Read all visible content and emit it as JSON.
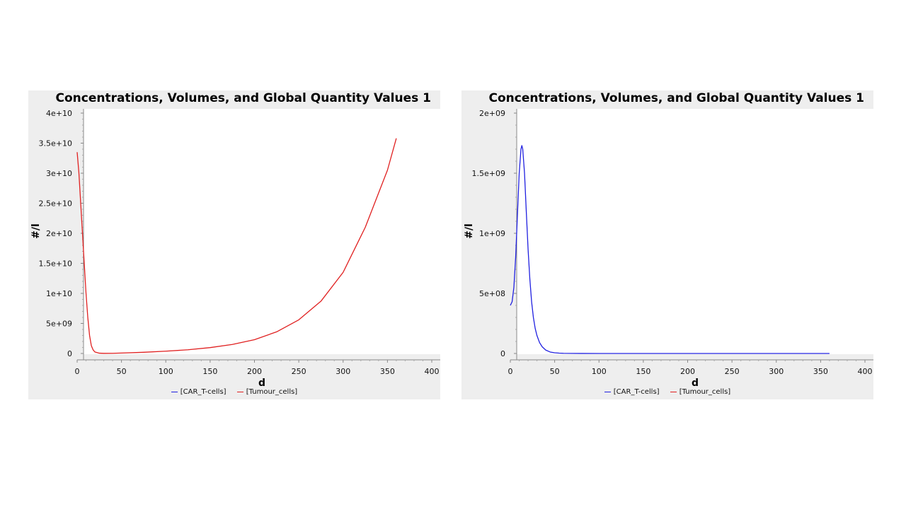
{
  "chart_data": [
    {
      "type": "line",
      "title": "Concentrations, Volumes, and Global Quantity Values 1",
      "xlabel": "d",
      "ylabel": "#/l",
      "xlim": [
        0,
        400
      ],
      "ylim": [
        0,
        40000000000
      ],
      "x_ticks": [
        "0",
        "50",
        "100",
        "150",
        "200",
        "250",
        "300",
        "350",
        "400"
      ],
      "y_ticks": [
        "0",
        "5e+09",
        "1e+10",
        "1.5e+10",
        "2e+10",
        "2.5e+10",
        "3e+10",
        "3.5e+10",
        "4e+10"
      ],
      "grid": false,
      "legend_position": "bottom",
      "legend": [
        {
          "name": "[CAR_T-cells]",
          "color": "#2020e0"
        },
        {
          "name": "[Tumour_cells]",
          "color": "#e02020"
        }
      ],
      "series": [
        {
          "name": "[Tumour_cells]",
          "color": "#e02020",
          "x": [
            0,
            2,
            4,
            6,
            8,
            10,
            12,
            14,
            16,
            18,
            20,
            25,
            30,
            40,
            50,
            75,
            100,
            125,
            150,
            175,
            200,
            225,
            250,
            275,
            300,
            325,
            350,
            360
          ],
          "values": [
            33500000000,
            30000000000,
            25000000000,
            20000000000,
            15000000000,
            10000000000,
            6000000000,
            3000000000,
            1300000000,
            600000000,
            250000000,
            50000000,
            20000000,
            30000000,
            70000000,
            200000000,
            380000000,
            620000000,
            980000000,
            1500000000,
            2300000000,
            3600000000,
            5600000000,
            8700000000,
            13500000000,
            21000000000,
            30500000000,
            35800000000
          ]
        }
      ]
    },
    {
      "type": "line",
      "title": "Concentrations, Volumes, and Global Quantity Values 1",
      "xlabel": "d",
      "ylabel": "#/l",
      "xlim": [
        0,
        400
      ],
      "ylim": [
        0,
        2000000000
      ],
      "x_ticks": [
        "0",
        "50",
        "100",
        "150",
        "200",
        "250",
        "300",
        "350",
        "400"
      ],
      "y_ticks": [
        "0",
        "5e+08",
        "1e+09",
        "1.5e+09",
        "2e+09"
      ],
      "grid": false,
      "legend_position": "bottom",
      "legend": [
        {
          "name": "[CAR_T-cells]",
          "color": "#2020e0"
        },
        {
          "name": "[Tumour_cells]",
          "color": "#e02020"
        }
      ],
      "series": [
        {
          "name": "[CAR_T-cells]",
          "color": "#2020e0",
          "x": [
            0,
            2,
            4,
            6,
            8,
            10,
            12,
            13,
            14,
            16,
            18,
            20,
            22,
            24,
            26,
            28,
            30,
            33,
            36,
            40,
            45,
            50,
            55,
            60,
            80,
            100,
            150,
            200,
            250,
            300,
            360
          ],
          "values": [
            400000000,
            430000000,
            550000000,
            800000000,
            1150000000,
            1500000000,
            1700000000,
            1730000000,
            1700000000,
            1500000000,
            1180000000,
            870000000,
            620000000,
            430000000,
            300000000,
            210000000,
            150000000,
            90000000,
            55000000,
            28000000,
            12000000,
            6000000,
            3000000,
            1500000,
            300000,
            100000,
            10000,
            0,
            0,
            0,
            0
          ]
        }
      ]
    }
  ]
}
